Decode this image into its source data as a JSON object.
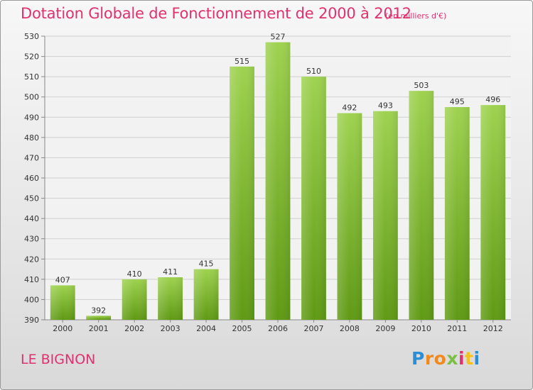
{
  "chart_data": {
    "type": "bar",
    "title": "Dotation Globale de Fonctionnement de 2000 à 2012",
    "subtitle": "(en milliers d'€)",
    "categories": [
      "2000",
      "2001",
      "2002",
      "2003",
      "2004",
      "2005",
      "2006",
      "2007",
      "2008",
      "2009",
      "2010",
      "2011",
      "2012"
    ],
    "values": [
      407,
      392,
      410,
      411,
      415,
      515,
      527,
      510,
      492,
      493,
      503,
      495,
      496
    ],
    "ylim": [
      390,
      530
    ],
    "yticks": [
      390,
      400,
      410,
      420,
      430,
      440,
      450,
      460,
      470,
      480,
      490,
      500,
      510,
      520,
      530
    ],
    "xlabel": "",
    "ylabel": "",
    "grid": true,
    "bar_color": "#7cbc2e"
  },
  "footer": {
    "commune": "LE BIGNON",
    "logo": [
      "P",
      "r",
      "o",
      "x",
      "i",
      "t",
      "i"
    ]
  }
}
